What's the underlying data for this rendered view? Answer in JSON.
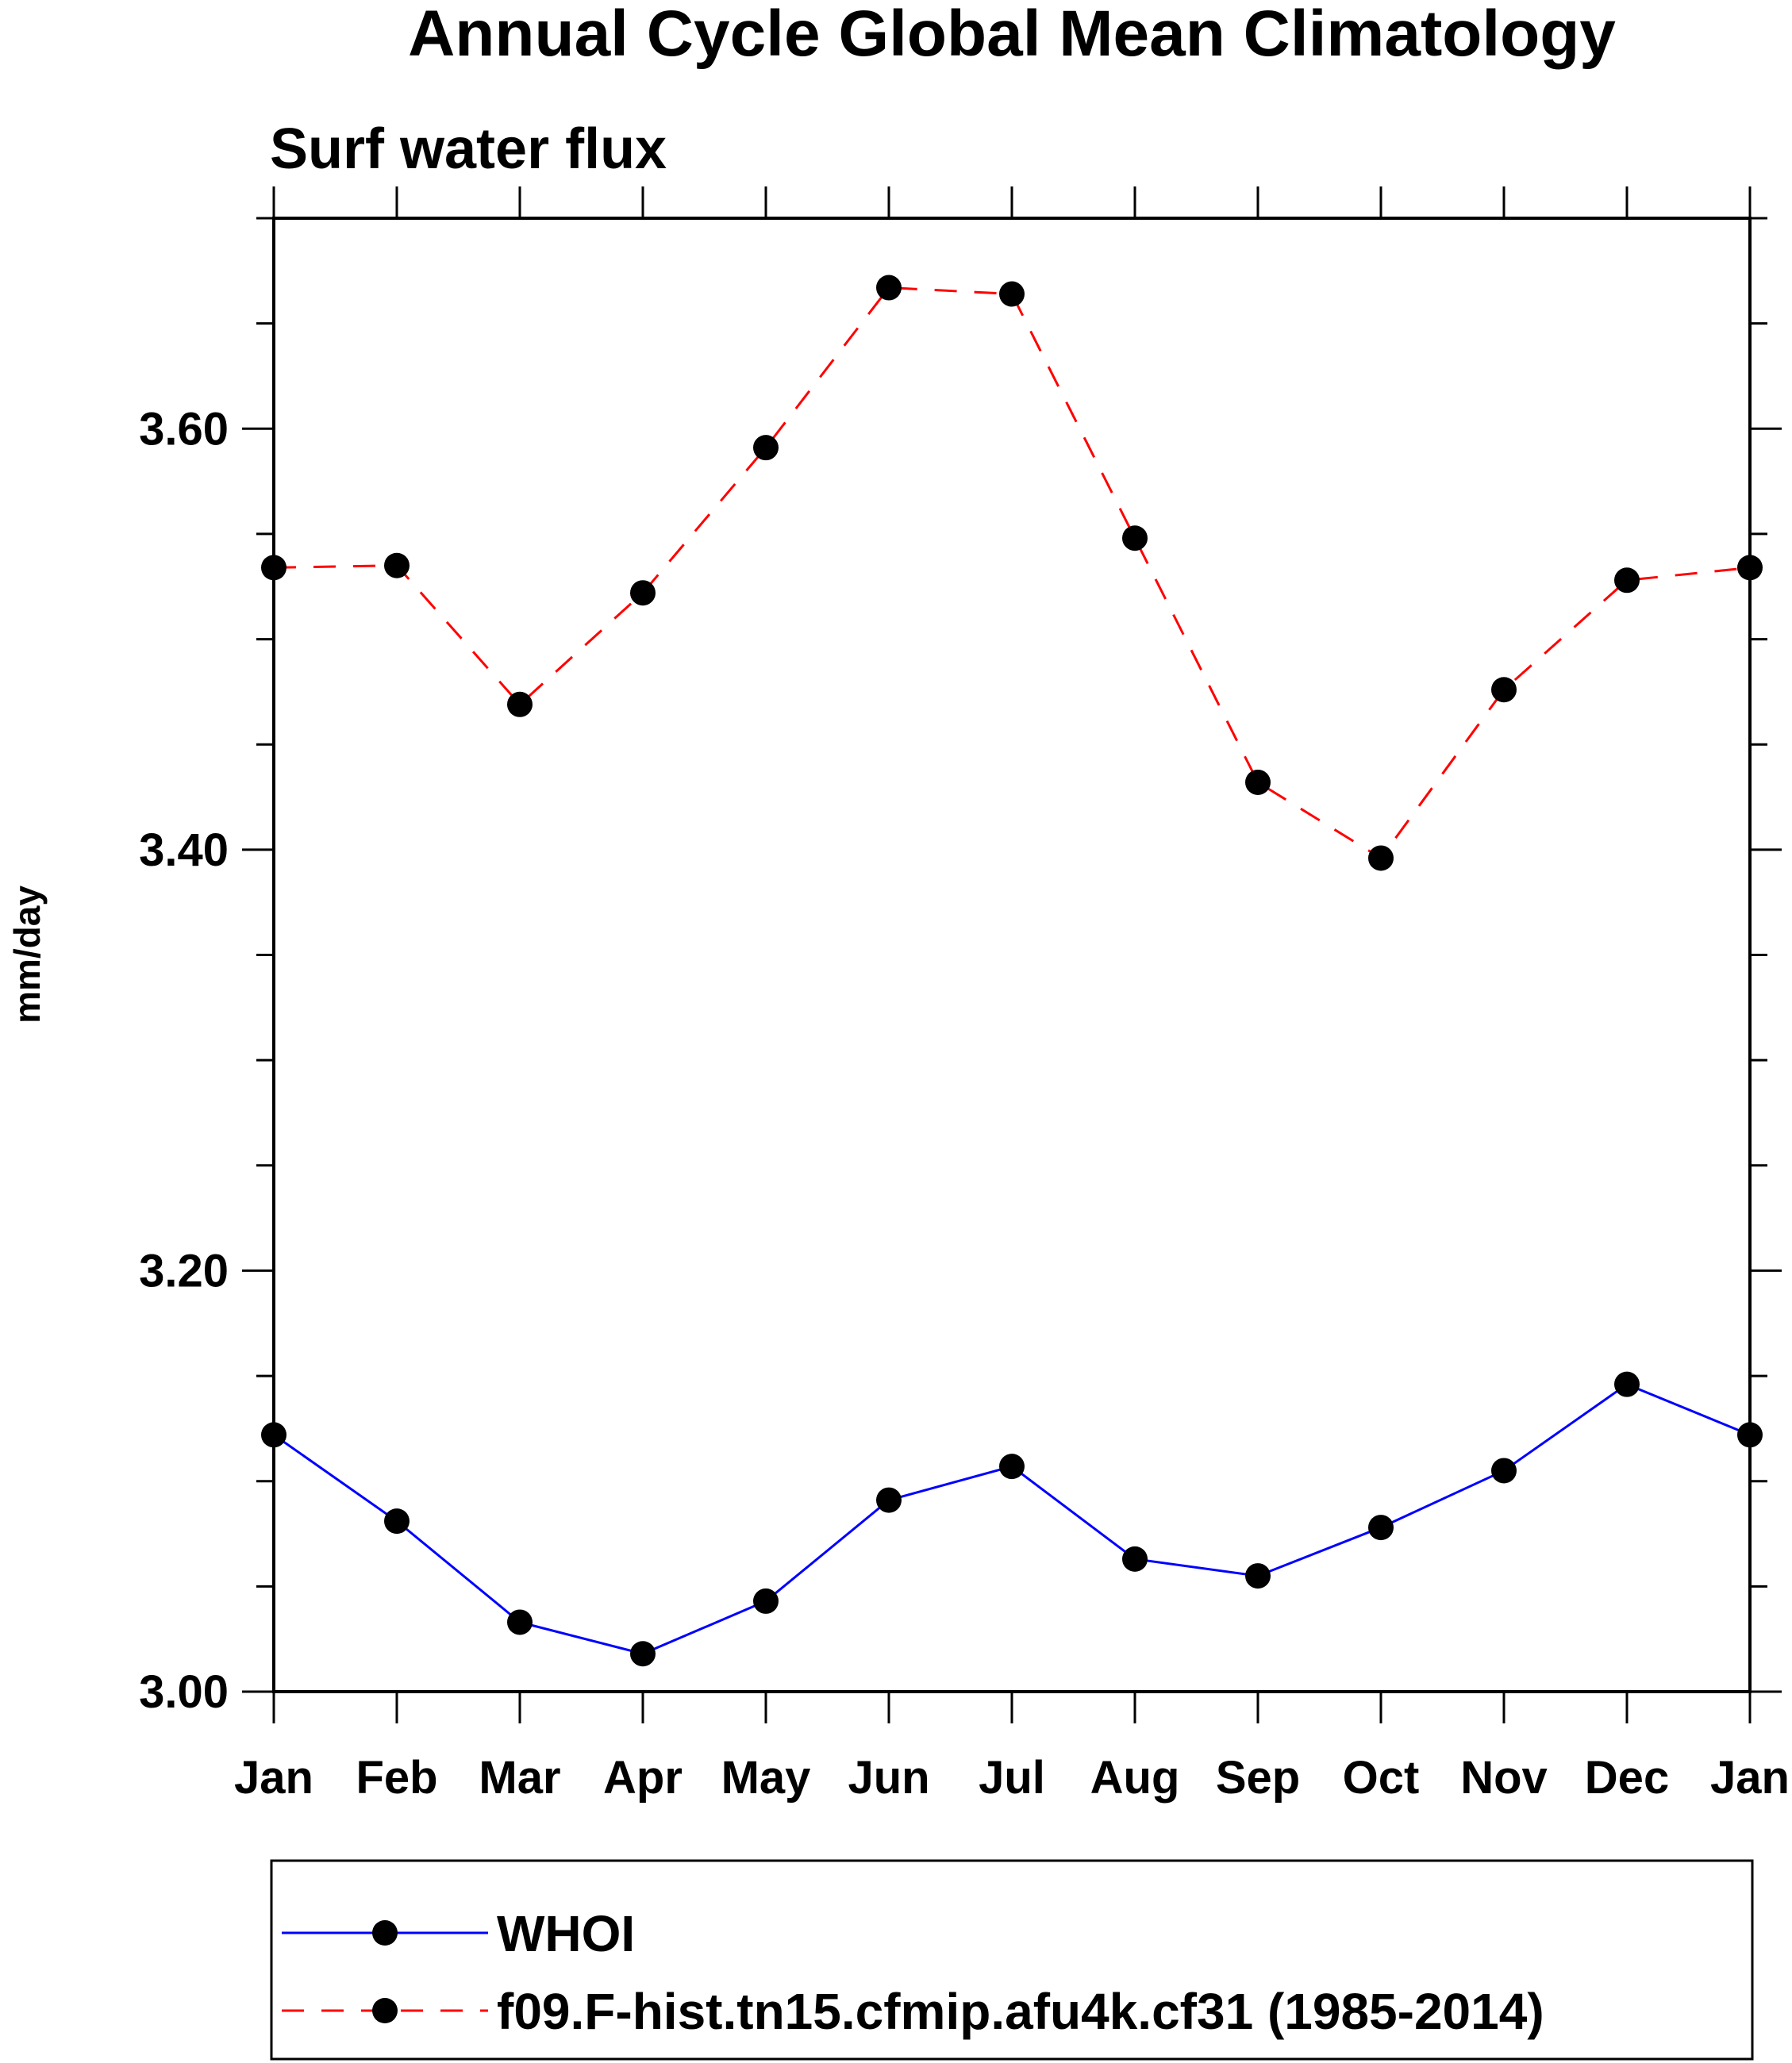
{
  "chart_data": {
    "type": "line",
    "title": "Annual Cycle Global Mean Climatology",
    "subtitle": "Surf water flux",
    "xlabel": "",
    "ylabel": "mm/day",
    "categories": [
      "Jan",
      "Feb",
      "Mar",
      "Apr",
      "May",
      "Jun",
      "Jul",
      "Aug",
      "Sep",
      "Oct",
      "Nov",
      "Dec",
      "Jan"
    ],
    "ylim": [
      3.0,
      3.7
    ],
    "yticks": [
      "3.00",
      "3.20",
      "3.40",
      "3.60"
    ],
    "ytick_values": [
      3.0,
      3.2,
      3.4,
      3.6
    ],
    "y_minor_step": 0.05,
    "grid": false,
    "legend_position": "bottom",
    "series": [
      {
        "name": "WHOI",
        "color": "#0000ff",
        "line_style": "solid",
        "marker": "filled-circle",
        "values": [
          3.122,
          3.081,
          3.033,
          3.018,
          3.043,
          3.091,
          3.107,
          3.063,
          3.055,
          3.078,
          3.105,
          3.146,
          3.122
        ]
      },
      {
        "name": "f09.F-hist.tn15.cfmip.afu4k.cf31 (1985-2014)",
        "color": "#ff0000",
        "line_style": "dashed",
        "marker": "filled-circle",
        "values": [
          3.534,
          3.535,
          3.469,
          3.522,
          3.591,
          3.667,
          3.664,
          3.548,
          3.432,
          3.396,
          3.476,
          3.528,
          3.534
        ]
      }
    ]
  }
}
